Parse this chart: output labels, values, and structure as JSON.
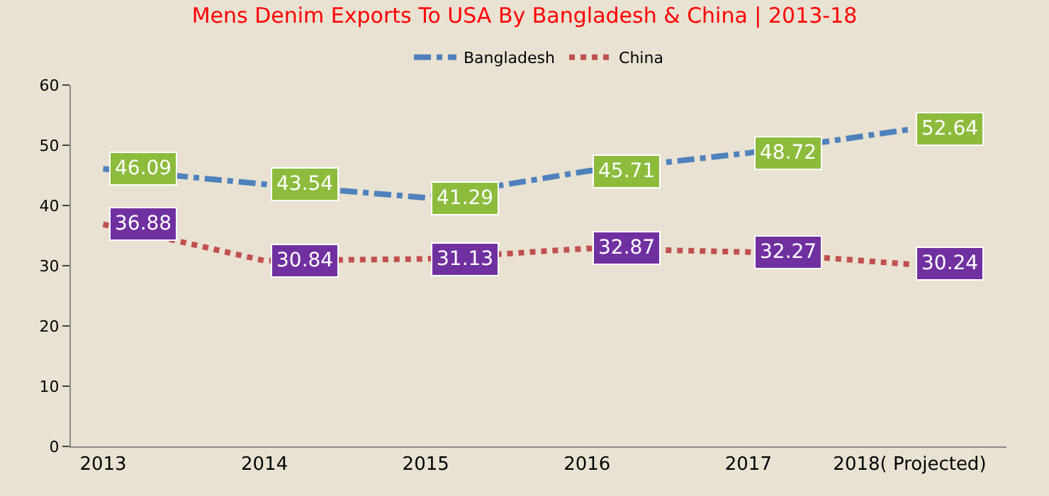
{
  "chart_data": {
    "type": "line",
    "title": "Mens Denim Exports To USA By Bangladesh & China | 2013-18",
    "categories": [
      "2013",
      "2014",
      "2015",
      "2016",
      "2017",
      "2018( Projected)"
    ],
    "series": [
      {
        "name": "Bangladesh",
        "color": "#4f81bd",
        "line_style": "dashed",
        "values": [
          46.09,
          43.54,
          41.29,
          45.71,
          48.72,
          52.64
        ]
      },
      {
        "name": "China",
        "color": "#c0504d",
        "line_style": "dotted",
        "values": [
          36.88,
          30.84,
          31.13,
          32.87,
          32.27,
          30.24
        ]
      }
    ],
    "ylim": [
      0,
      60
    ],
    "yticks": [
      0,
      10,
      20,
      30,
      40,
      50,
      60
    ],
    "grid": false,
    "legend": "top",
    "data_labels": true
  }
}
